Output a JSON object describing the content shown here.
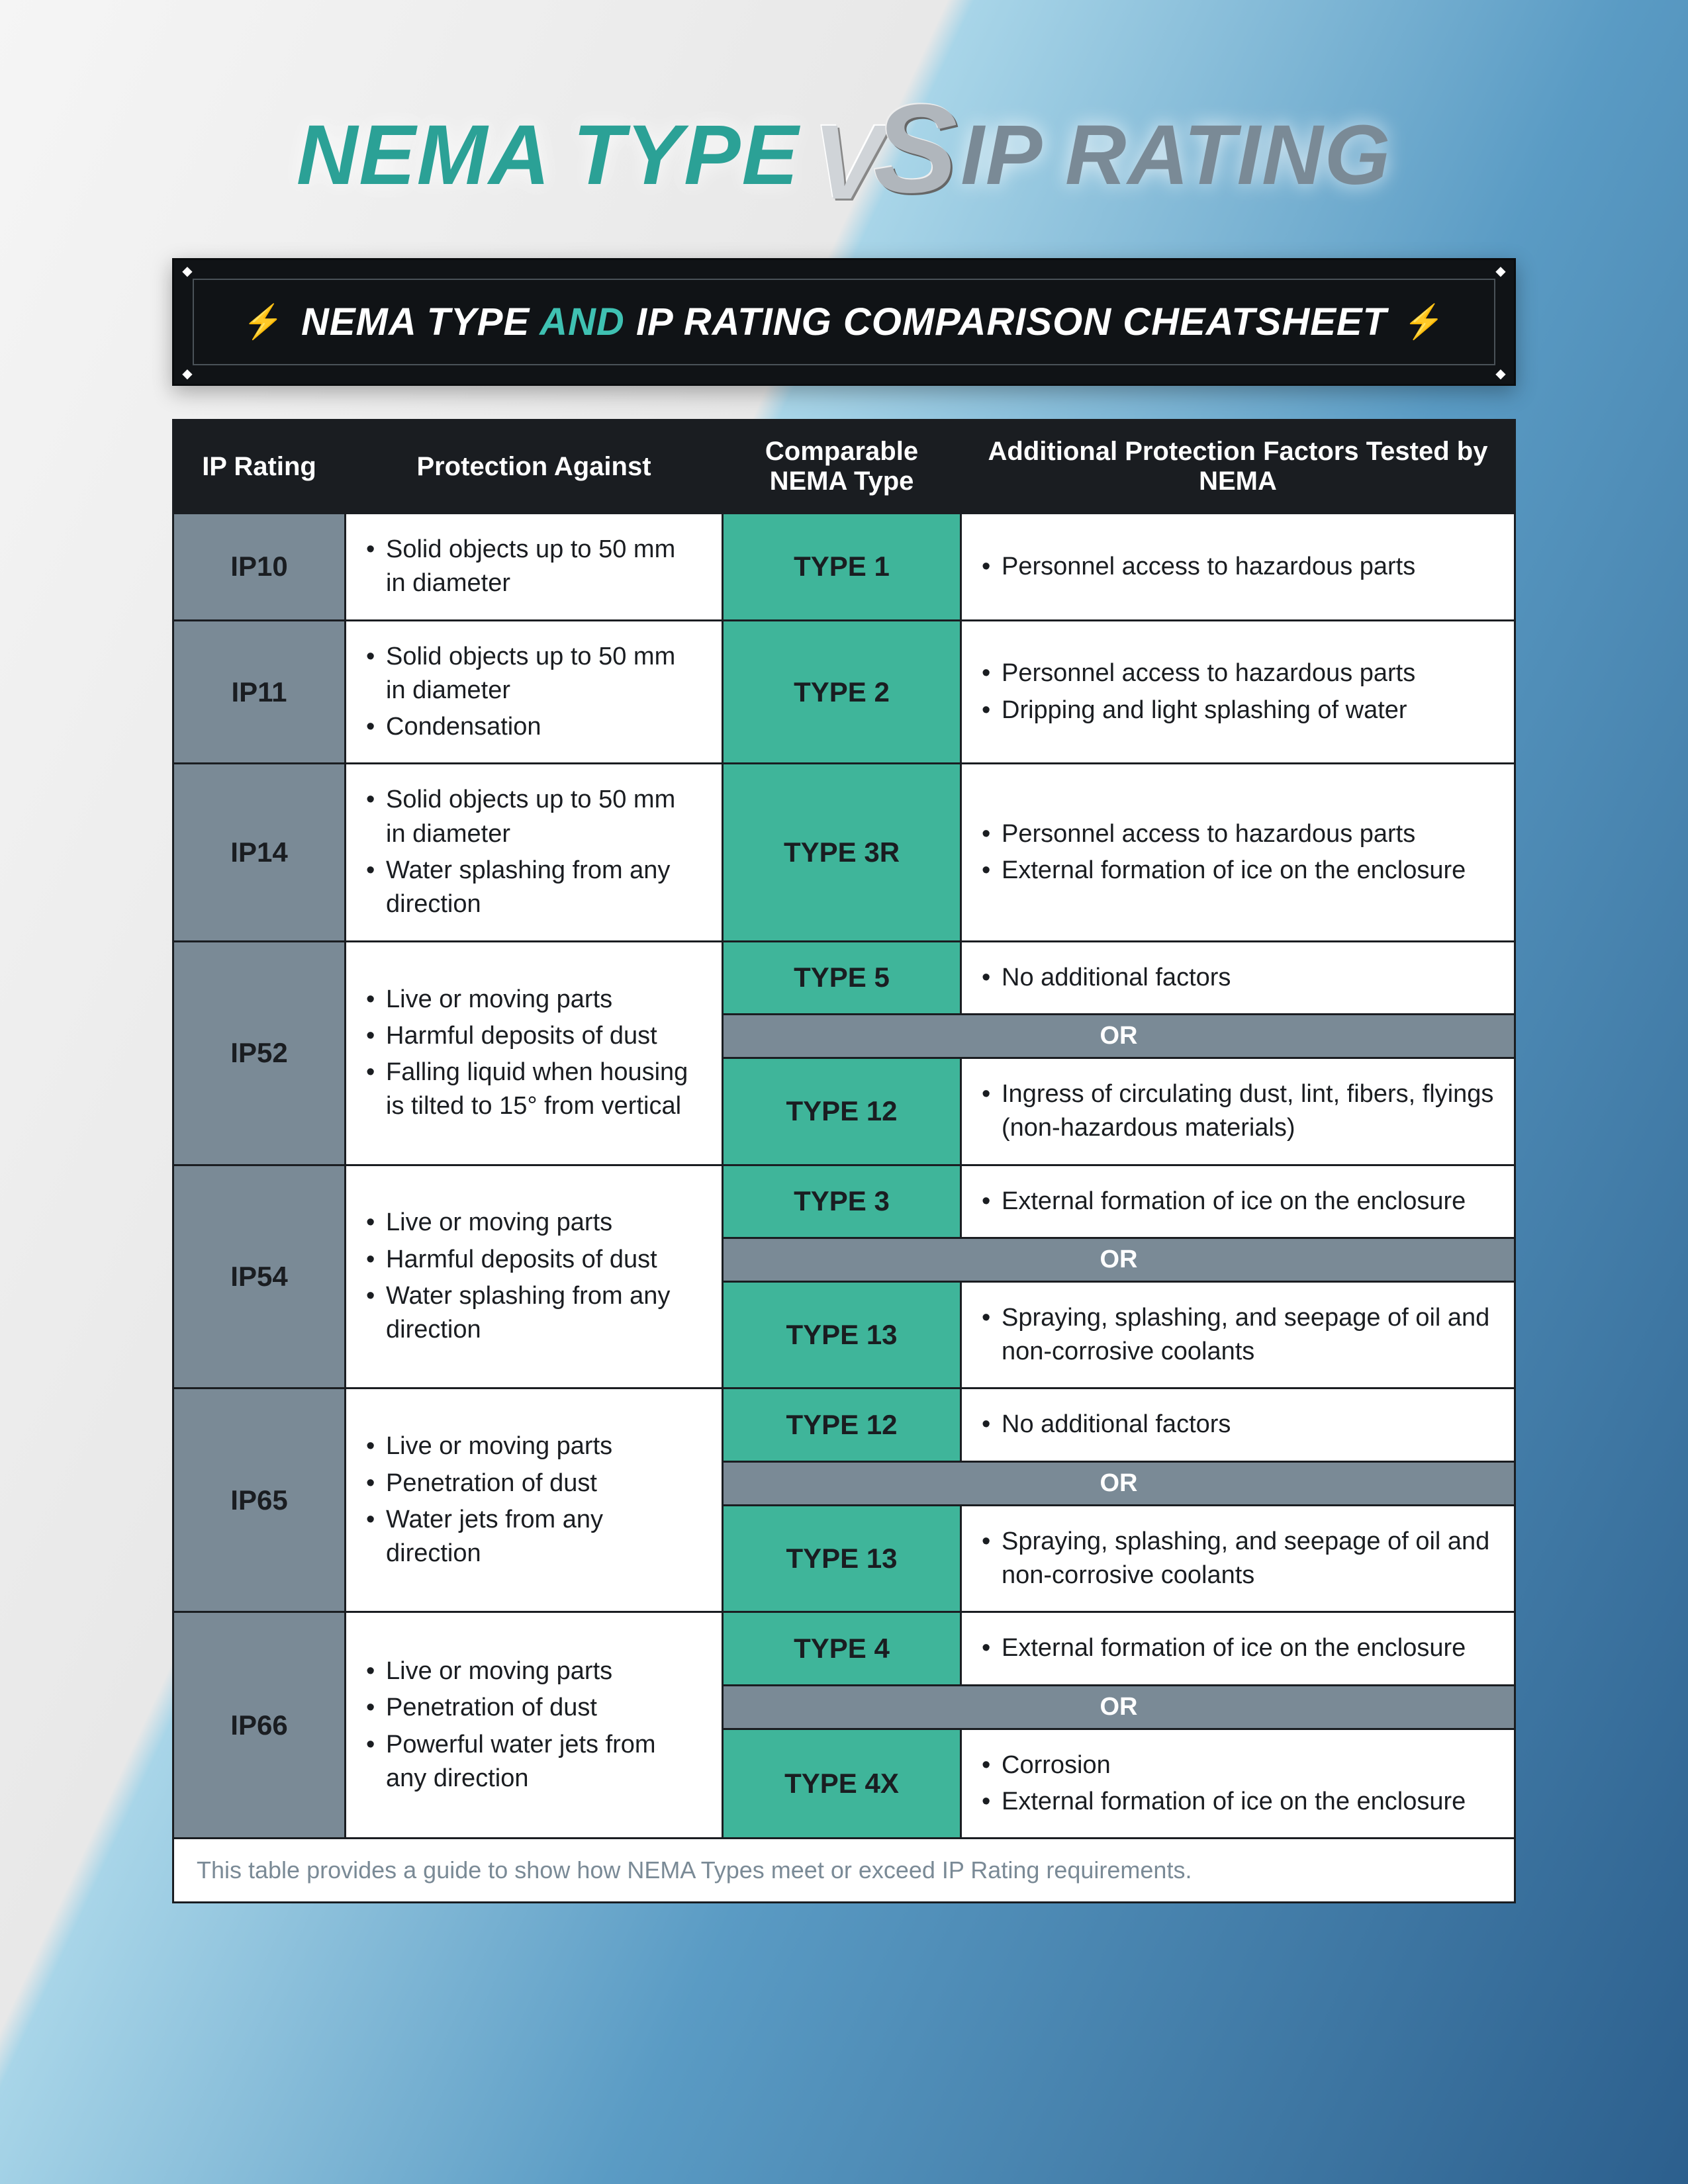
{
  "title": {
    "left": "NEMA TYPE",
    "right": "IP RATING",
    "vs_v": "V",
    "vs_s": "S"
  },
  "banner": {
    "pre": "NEMA TYPE",
    "accent": "AND",
    "post": "IP RATING COMPARISON CHEATSHEET",
    "bolt": "⚡",
    "diamond": "◆"
  },
  "headers": {
    "c1": "IP Rating",
    "c2": "Protection Against",
    "c3": "Comparable NEMA Type",
    "c4": "Additional Protection Factors Tested by NEMA"
  },
  "or_label": "OR",
  "rows": {
    "ip10": {
      "ip": "IP10",
      "prot": [
        "Solid objects up to 50 mm in diameter"
      ],
      "nema": "TYPE 1",
      "add": [
        "Personnel access to hazardous parts"
      ]
    },
    "ip11": {
      "ip": "IP11",
      "prot": [
        "Solid objects up to 50 mm in diameter",
        "Condensation"
      ],
      "nema": "TYPE 2",
      "add": [
        "Personnel access to hazardous parts",
        "Dripping and light splashing of water"
      ]
    },
    "ip14": {
      "ip": "IP14",
      "prot": [
        "Solid objects up to 50 mm in diameter",
        "Water splashing from any direction"
      ],
      "nema": "TYPE 3R",
      "add": [
        "Personnel access to hazardous parts",
        "External formation of ice on the enclosure"
      ]
    },
    "ip52": {
      "ip": "IP52",
      "prot": [
        "Live or moving parts",
        "Harmful deposits of dust",
        "Falling liquid when housing is tilted to 15° from vertical"
      ],
      "nema_a": "TYPE 5",
      "add_a": [
        "No additional factors"
      ],
      "nema_b": "TYPE 12",
      "add_b": [
        "Ingress of circulating dust, lint, fibers, flyings (non-hazardous materials)"
      ]
    },
    "ip54": {
      "ip": "IP54",
      "prot": [
        "Live or moving parts",
        "Harmful deposits of dust",
        "Water splashing from any direction"
      ],
      "nema_a": "TYPE 3",
      "add_a": [
        "External formation of ice on the enclosure"
      ],
      "nema_b": "TYPE 13",
      "add_b": [
        "Spraying, splashing, and seepage of oil and non-corrosive coolants"
      ]
    },
    "ip65": {
      "ip": "IP65",
      "prot": [
        "Live or moving parts",
        "Penetration of dust",
        "Water jets from any direction"
      ],
      "nema_a": "TYPE 12",
      "add_a": [
        "No additional factors"
      ],
      "nema_b": "TYPE 13",
      "add_b": [
        "Spraying, splashing, and seepage of oil and non-corrosive coolants"
      ]
    },
    "ip66": {
      "ip": "IP66",
      "prot": [
        "Live or moving parts",
        "Penetration of dust",
        "Powerful water jets from any direction"
      ],
      "nema_a": "TYPE 4",
      "add_a": [
        "External formation of ice on the enclosure"
      ],
      "nema_b": "TYPE 4X",
      "add_b": [
        "Corrosion",
        "External formation of ice on the enclosure"
      ]
    }
  },
  "footnote": "This table provides a guide to show how NEMA Types meet or exceed IP Rating requirements.",
  "colors": {
    "teal": "#3fb59a",
    "slate": "#7a8a96",
    "dark": "#1a1d21",
    "white": "#ffffff",
    "title_teal": "#2ba196",
    "title_gray": "#7a8a96"
  }
}
